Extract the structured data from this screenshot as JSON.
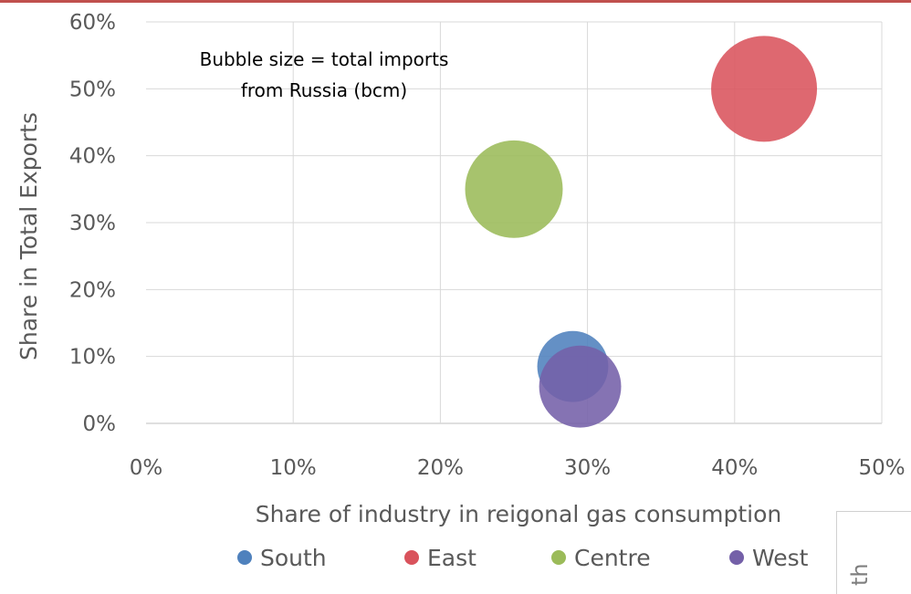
{
  "chart_data": {
    "type": "bubble",
    "title": "",
    "annotation_lines": [
      "Bubble size = total imports",
      "from Russia (bcm)"
    ],
    "xlabel": "Share of industry in reigonal gas consumption",
    "ylabel": "Share in Total Exports",
    "xlim": [
      0,
      50
    ],
    "ylim": [
      0,
      60
    ],
    "x_ticks": [
      "0%",
      "10%",
      "20%",
      "30%",
      "40%",
      "50%"
    ],
    "y_ticks": [
      "0%",
      "10%",
      "20%",
      "30%",
      "40%",
      "50%",
      "60%"
    ],
    "grid": true,
    "legend_position": "bottom",
    "series": [
      {
        "name": "South",
        "x": 29,
        "y": 8.5,
        "size": 0.45,
        "color": "#4f81bd"
      },
      {
        "name": "East",
        "x": 42,
        "y": 50,
        "size": 1.0,
        "color": "#d9535c"
      },
      {
        "name": "Centre",
        "x": 25,
        "y": 35,
        "size": 0.85,
        "color": "#9bbb59"
      },
      {
        "name": "West",
        "x": 29.5,
        "y": 5.5,
        "size": 0.6,
        "color": "#7460a8"
      }
    ]
  },
  "side_fragment": "th"
}
